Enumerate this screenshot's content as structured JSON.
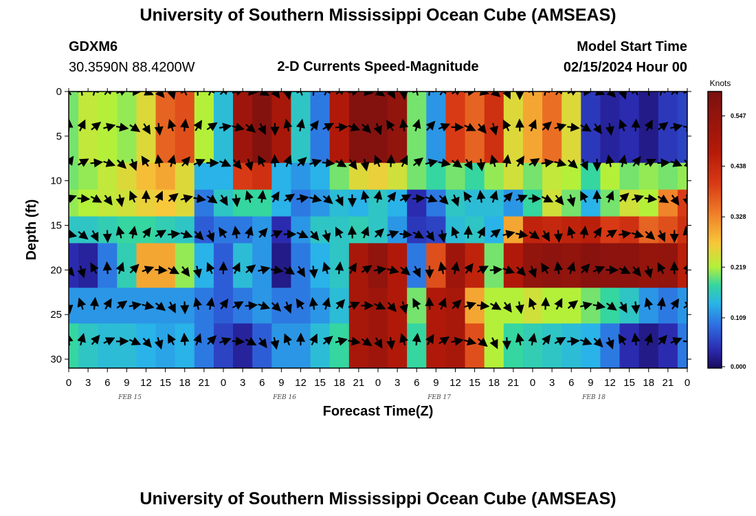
{
  "header": {
    "title": "University of Southern Mississippi Ocean Cube (AMSEAS)",
    "station_id": "GDXM6",
    "coords": "30.3590N  88.4200W",
    "subtitle": "2-D Currents Speed-Magnitude",
    "model_start_label": "Model Start Time",
    "model_start_value": "02/15/2024 Hour 00"
  },
  "footer": {
    "title": "University of Southern Mississippi Ocean Cube (AMSEAS)"
  },
  "colors": {
    "background": "#ffffff",
    "arrow": "#000000"
  },
  "chart_data": {
    "type": "heatmap",
    "title": "2-D Currents Speed-Magnitude",
    "xlabel": "Forecast Time(Z)",
    "ylabel": "Depth (ft)",
    "x_ticks": [
      "0",
      "3",
      "6",
      "9",
      "12",
      "15",
      "18",
      "21",
      "0",
      "3",
      "6",
      "9",
      "12",
      "15",
      "18",
      "21",
      "0",
      "3",
      "6",
      "9",
      "12",
      "15",
      "18",
      "21",
      "0",
      "3",
      "6",
      "9",
      "12",
      "15",
      "18",
      "21",
      "0"
    ],
    "x_hours_range": [
      0,
      96
    ],
    "date_labels": [
      {
        "label": "FEB 15",
        "hour": 9.5
      },
      {
        "label": "FEB 16",
        "hour": 33.5
      },
      {
        "label": "FEB 17",
        "hour": 57.5
      },
      {
        "label": "FEB 18",
        "hour": 81.5
      }
    ],
    "y_ticks": [
      0,
      5,
      10,
      15,
      20,
      25,
      30
    ],
    "ylim": [
      0,
      31
    ],
    "colorbar": {
      "unit": "Knots",
      "range": [
        0,
        0.6
      ],
      "tick_values": [
        0.0,
        0.109,
        0.219,
        0.328,
        0.438,
        0.547
      ],
      "tick_labels": [
        "0.000",
        "0.109",
        "0.219",
        "0.328",
        "0.438",
        "0.547"
      ],
      "stops": [
        {
          "v": 0.0,
          "color": "#1a0a5e"
        },
        {
          "v": 0.04,
          "color": "#2b2bb0"
        },
        {
          "v": 0.09,
          "color": "#2e6ae0"
        },
        {
          "v": 0.14,
          "color": "#29b3e8"
        },
        {
          "v": 0.18,
          "color": "#35d6a0"
        },
        {
          "v": 0.22,
          "color": "#b4f03a"
        },
        {
          "v": 0.27,
          "color": "#f7c83a"
        },
        {
          "v": 0.33,
          "color": "#f1842a"
        },
        {
          "v": 0.4,
          "color": "#d83a15"
        },
        {
          "v": 0.47,
          "color": "#b51a08"
        },
        {
          "v": 0.6,
          "color": "#7a1010"
        }
      ]
    },
    "depth_rows": [
      {
        "top": 0,
        "bottom": 8
      },
      {
        "top": 8,
        "bottom": 11
      },
      {
        "top": 11,
        "bottom": 14
      },
      {
        "top": 14,
        "bottom": 17
      },
      {
        "top": 17,
        "bottom": 22
      },
      {
        "top": 22,
        "bottom": 26
      },
      {
        "top": 26,
        "bottom": 31
      }
    ],
    "speed_knots_by_row_every_3h": [
      [
        0.2,
        0.23,
        0.22,
        0.21,
        0.25,
        0.36,
        0.38,
        0.22,
        0.15,
        0.52,
        0.58,
        0.5,
        0.16,
        0.1,
        0.48,
        0.58,
        0.58,
        0.55,
        0.2,
        0.12,
        0.4,
        0.36,
        0.42,
        0.25,
        0.3,
        0.35,
        0.25,
        0.05,
        0.03,
        0.04,
        0.02,
        0.05,
        0.06
      ],
      [
        0.2,
        0.21,
        0.23,
        0.25,
        0.28,
        0.3,
        0.25,
        0.14,
        0.14,
        0.4,
        0.42,
        0.14,
        0.12,
        0.14,
        0.2,
        0.25,
        0.26,
        0.24,
        0.2,
        0.18,
        0.2,
        0.18,
        0.21,
        0.24,
        0.2,
        0.23,
        0.22,
        0.18,
        0.22,
        0.2,
        0.21,
        0.2,
        0.21
      ],
      [
        0.21,
        0.22,
        0.23,
        0.24,
        0.26,
        0.27,
        0.25,
        0.1,
        0.16,
        0.18,
        0.18,
        0.14,
        0.1,
        0.12,
        0.15,
        0.14,
        0.16,
        0.14,
        0.04,
        0.1,
        0.16,
        0.15,
        0.15,
        0.12,
        0.18,
        0.24,
        0.2,
        0.14,
        0.2,
        0.24,
        0.22,
        0.33,
        0.4
      ],
      [
        0.16,
        0.16,
        0.17,
        0.18,
        0.18,
        0.17,
        0.16,
        0.08,
        0.1,
        0.1,
        0.12,
        0.04,
        0.12,
        0.16,
        0.16,
        0.17,
        0.16,
        0.12,
        0.05,
        0.06,
        0.15,
        0.16,
        0.14,
        0.3,
        0.45,
        0.44,
        0.45,
        0.46,
        0.4,
        0.42,
        0.36,
        0.38,
        0.42
      ],
      [
        0.04,
        0.03,
        0.1,
        0.17,
        0.3,
        0.3,
        0.21,
        0.14,
        0.08,
        0.15,
        0.12,
        0.02,
        0.1,
        0.14,
        0.16,
        0.5,
        0.55,
        0.48,
        0.1,
        0.38,
        0.52,
        0.45,
        0.2,
        0.48,
        0.55,
        0.56,
        0.55,
        0.57,
        0.56,
        0.56,
        0.54,
        0.55,
        0.46
      ],
      [
        0.12,
        0.12,
        0.12,
        0.12,
        0.12,
        0.12,
        0.12,
        0.1,
        0.08,
        0.1,
        0.12,
        0.1,
        0.1,
        0.12,
        0.15,
        0.5,
        0.52,
        0.48,
        0.2,
        0.48,
        0.5,
        0.3,
        0.22,
        0.22,
        0.24,
        0.22,
        0.22,
        0.2,
        0.18,
        0.16,
        0.12,
        0.1,
        0.12
      ],
      [
        0.18,
        0.16,
        0.15,
        0.15,
        0.14,
        0.13,
        0.14,
        0.1,
        0.06,
        0.03,
        0.08,
        0.12,
        0.12,
        0.15,
        0.18,
        0.5,
        0.52,
        0.48,
        0.18,
        0.48,
        0.5,
        0.38,
        0.22,
        0.18,
        0.17,
        0.16,
        0.15,
        0.14,
        0.1,
        0.04,
        0.02,
        0.04,
        0.1
      ]
    ],
    "arrow_depths_ft": [
      0,
      4,
      8,
      12,
      16,
      20,
      24,
      28
    ],
    "arrow_hours": [
      0,
      2,
      4,
      6,
      8,
      10,
      12,
      14,
      16,
      18,
      20,
      22,
      24,
      26,
      28,
      30,
      32,
      34,
      36,
      38,
      40,
      42,
      44,
      46,
      48,
      50,
      52,
      54,
      56,
      58,
      60,
      62,
      64,
      66,
      68,
      70,
      72,
      74,
      76,
      78,
      80,
      82,
      84,
      86,
      88,
      90,
      92,
      94,
      96
    ]
  }
}
